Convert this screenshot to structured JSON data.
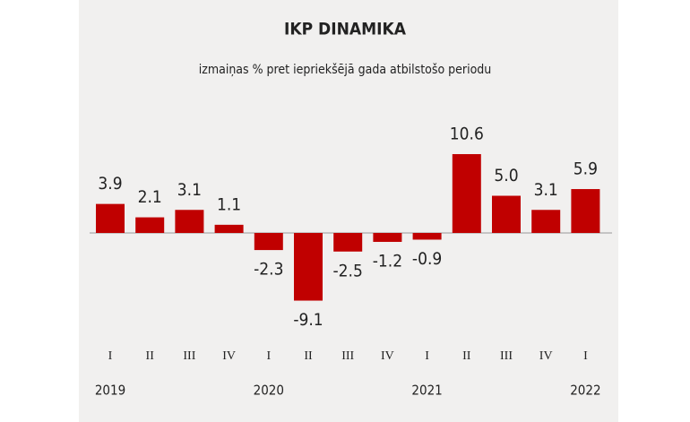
{
  "chart_data": {
    "type": "bar",
    "title": "IKP DINAMIKA",
    "subtitle": "izmaiņas % pret iepriekšējā gada atbilstošo periodu",
    "categories": [
      "I",
      "II",
      "III",
      "IV",
      "I",
      "II",
      "III",
      "IV",
      "I",
      "II",
      "III",
      "IV",
      "I"
    ],
    "years": [
      "2019",
      null,
      null,
      null,
      "2020",
      null,
      null,
      null,
      "2021",
      null,
      null,
      null,
      "2022"
    ],
    "values": [
      3.9,
      2.1,
      3.1,
      1.1,
      -2.3,
      -9.1,
      -2.5,
      -1.2,
      -0.9,
      10.6,
      5.0,
      3.1,
      5.9
    ],
    "value_labels": [
      "3.9",
      "2.1",
      "3.1",
      "1.1",
      "-2.3",
      "-9.1",
      "-2.5",
      "-1.2",
      "-0.9",
      "10.6",
      "5.0",
      "3.1",
      "5.9"
    ],
    "color": "#c00000"
  }
}
